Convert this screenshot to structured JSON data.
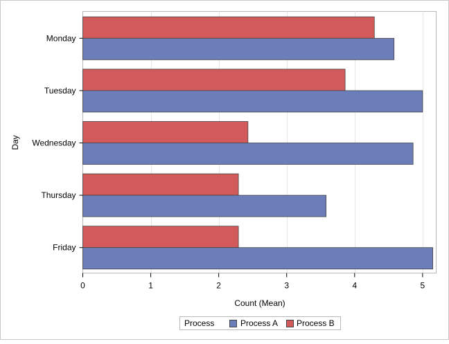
{
  "chart_data": {
    "type": "bar",
    "orientation": "horizontal",
    "categories": [
      "Monday",
      "Tuesday",
      "Wednesday",
      "Thursday",
      "Friday"
    ],
    "series": [
      {
        "name": "Process A",
        "values": [
          4.58,
          5.0,
          4.86,
          3.58,
          5.15
        ]
      },
      {
        "name": "Process B",
        "values": [
          4.29,
          3.86,
          2.43,
          2.29,
          2.29
        ]
      }
    ],
    "xlabel": "Count (Mean)",
    "ylabel": "Day",
    "xlim": [
      0,
      5.2
    ],
    "xticks": [
      "0",
      "1",
      "2",
      "3",
      "4",
      "5"
    ],
    "grid": "vertical",
    "legend": {
      "title": "Process",
      "entries": [
        "Process A",
        "Process B"
      ],
      "placement": "bottom-center"
    },
    "colors": {
      "Process A": "#6b7eba",
      "Process B": "#d35a5a",
      "outline": "#444444",
      "grid": "#e6e6e6",
      "frame": "#b8b8b8"
    }
  }
}
